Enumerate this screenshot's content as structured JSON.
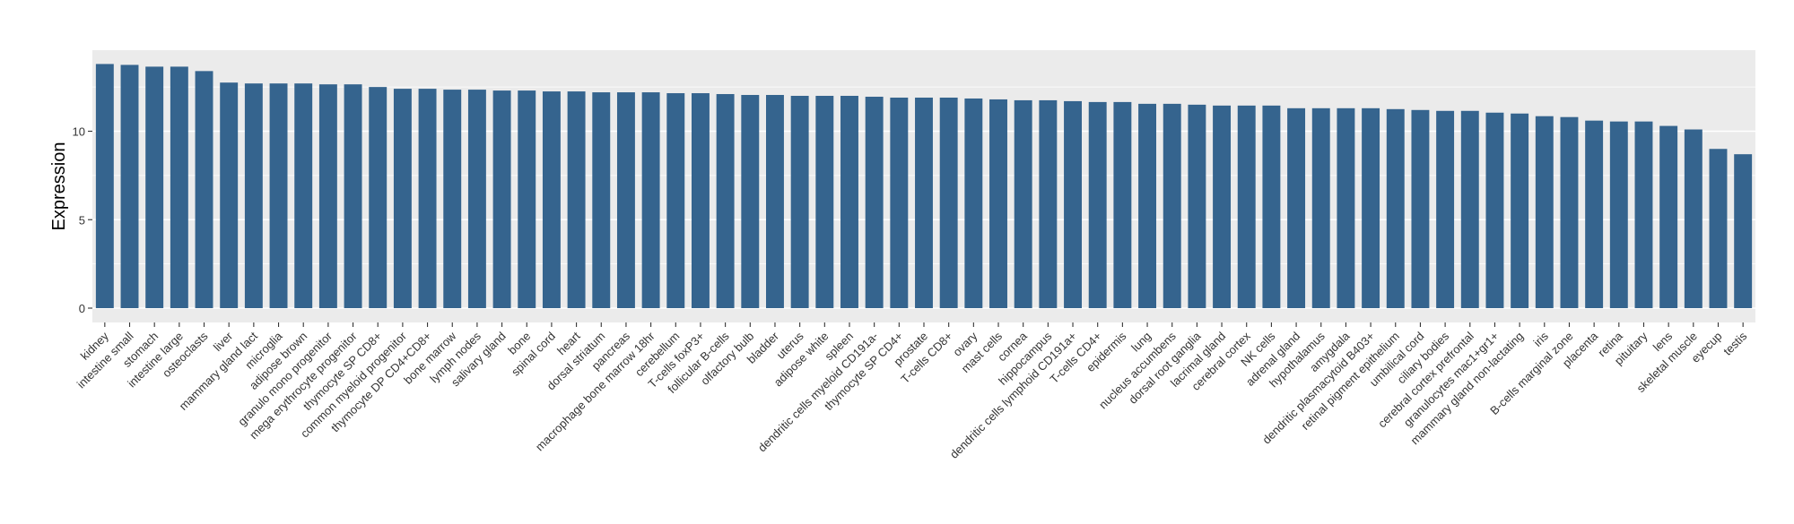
{
  "chart_data": {
    "type": "bar",
    "title": "",
    "xlabel": "",
    "ylabel": "Expression",
    "ylim": [
      0,
      14.4
    ],
    "yticks": [
      0,
      5,
      10
    ],
    "grid": true,
    "bar_color": "#35648e",
    "panel_color": "#ebebeb",
    "categories": [
      "kidney",
      "intestine small",
      "stomach",
      "intestine large",
      "osteoclasts",
      "liver",
      "mammary gland  lact",
      "microglia",
      "adipose brown",
      "granulo mono progenitor",
      "mega erythrocyte progenitor",
      "thymocyte SP CD8+",
      "common myeloid progenitor",
      "thymocyte DP CD4+CD8+",
      "bone marrow",
      "lymph nodes",
      "salivary gland",
      "bone",
      "spinal cord",
      "heart",
      "dorsal striatum",
      "pancreas",
      "macrophage bone marrow 18hr",
      "cerebellum",
      "T-cells foxP3+",
      "follicular B-cells",
      "olfactory bulb",
      "bladder",
      "uterus",
      "adipose white",
      "spleen",
      "dendritic cells myeloid CD191a-",
      "thymocyte SP CD4+",
      "prostate",
      "T-cells CD8+",
      "ovary",
      "mast cells",
      "cornea",
      "hippocampus",
      "dendritic cells lymphoid CD191a+",
      "T-cells CD4+",
      "epidermis",
      "lung",
      "nucleus accumbens",
      "dorsal root ganglia",
      "lacrimal gland",
      "cerebral cortex",
      "NK cells",
      "adrenal gland",
      "hypothalamus",
      "amygdala",
      "dendritic plasmacytoid B403+",
      "retinal pigment epithelium",
      "umbilical cord",
      "ciliary bodies",
      "cerebral cortex prefrontal",
      "granulocytes mac1+gr1+",
      "mammary gland non-lactating",
      "iris",
      "B-cells marginal zone",
      "placenta",
      "retina",
      "pituitary",
      "lens",
      "skeletal muscle",
      "eyecup",
      "testis"
    ],
    "values": [
      13.8,
      13.75,
      13.65,
      13.65,
      13.4,
      12.75,
      12.7,
      12.7,
      12.7,
      12.65,
      12.65,
      12.5,
      12.4,
      12.4,
      12.35,
      12.35,
      12.3,
      12.3,
      12.25,
      12.25,
      12.2,
      12.2,
      12.2,
      12.15,
      12.15,
      12.1,
      12.05,
      12.05,
      12.0,
      12.0,
      12.0,
      11.95,
      11.9,
      11.9,
      11.9,
      11.85,
      11.8,
      11.75,
      11.75,
      11.7,
      11.65,
      11.65,
      11.55,
      11.55,
      11.5,
      11.45,
      11.45,
      11.45,
      11.3,
      11.3,
      11.3,
      11.3,
      11.25,
      11.2,
      11.15,
      11.15,
      11.05,
      11.0,
      10.85,
      10.8,
      10.6,
      10.55,
      10.55,
      10.3,
      10.1,
      9.0,
      8.7
    ]
  }
}
